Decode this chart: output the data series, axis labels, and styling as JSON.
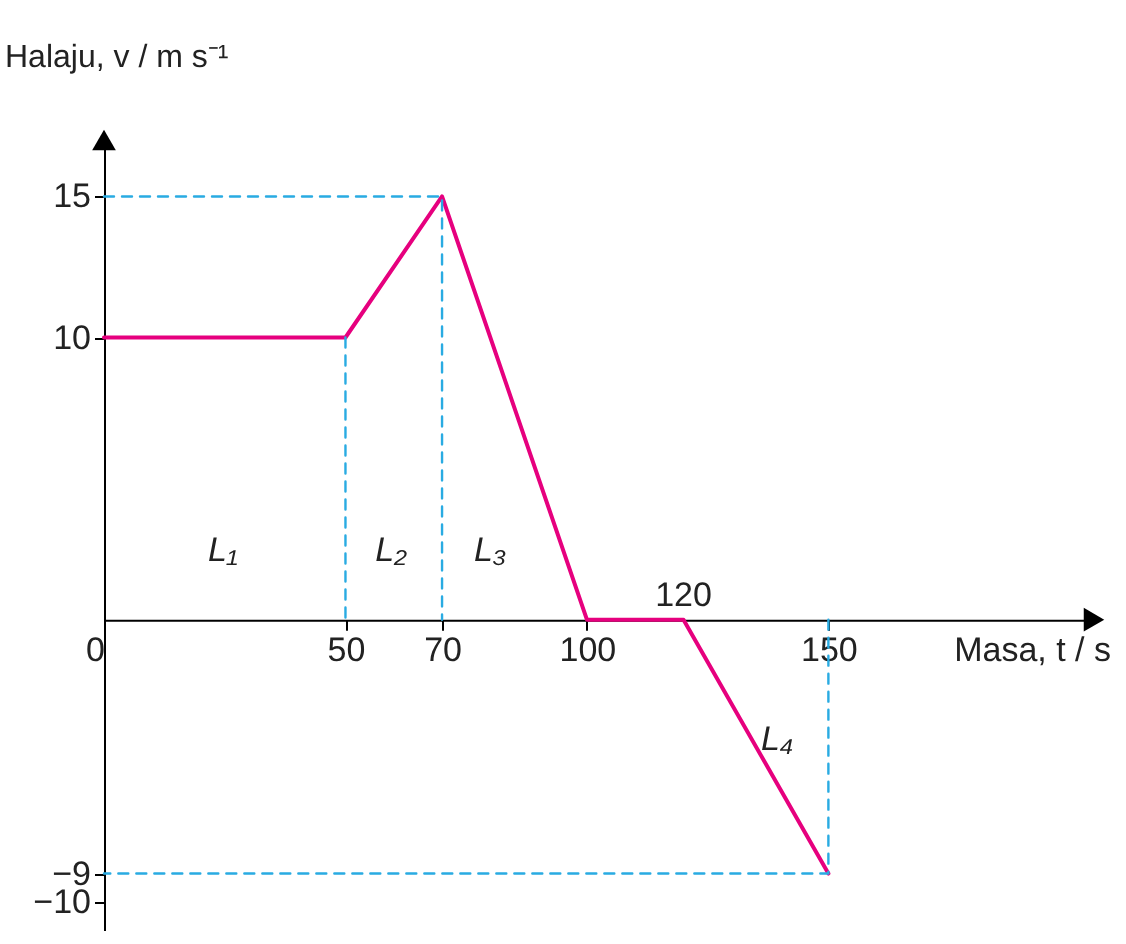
{
  "chart_data": {
    "type": "line",
    "xlabel": "Masa, t / s",
    "ylabel": "Halaju, v / m s⁻¹",
    "xlim": [
      0,
      205
    ],
    "ylim": [
      -11,
      17
    ],
    "xticks": [
      0,
      50,
      70,
      100,
      150
    ],
    "yticks": [
      {
        "value": -10,
        "label": "−10"
      },
      {
        "value": -9,
        "label": "−9"
      },
      10,
      15
    ],
    "grid": false,
    "marker": "none",
    "line_style": "solid",
    "series": [
      {
        "color": "#e6007e",
        "x": [
          0,
          50,
          70,
          100,
          120,
          150
        ],
        "values": [
          10,
          10,
          15,
          0,
          0,
          -9
        ]
      },
      {
        "color": "#29abe2",
        "line_style": "dashed",
        "x": [
          0,
          70,
          70
        ],
        "values": [
          15,
          15,
          0
        ]
      },
      {
        "color": "#29abe2",
        "line_style": "dashed",
        "x": [
          50,
          50
        ],
        "values": [
          10,
          0
        ]
      },
      {
        "color": "#29abe2",
        "line_style": "dashed",
        "x": [
          150,
          150,
          0
        ],
        "values": [
          0,
          -9,
          -9
        ]
      }
    ],
    "annotations": [
      "L₁",
      "L₂",
      "L₃",
      "L₄",
      {
        "text": "120",
        "x": 120,
        "y": 0
      }
    ]
  }
}
